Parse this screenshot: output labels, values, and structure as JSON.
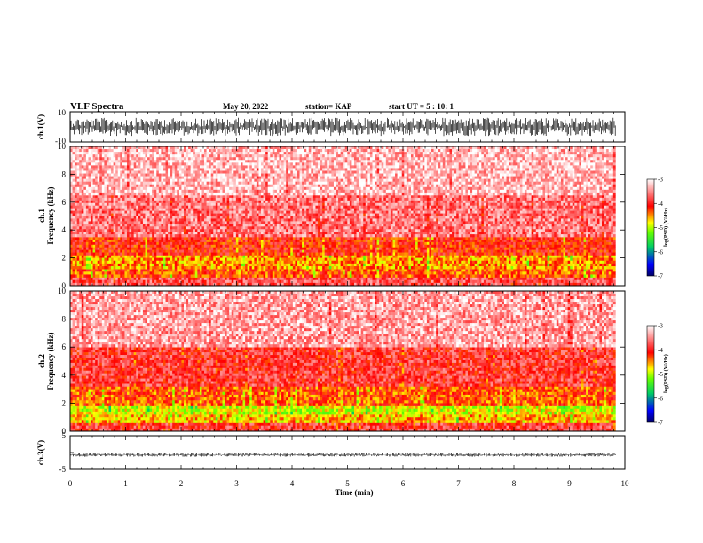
{
  "header": {
    "title": "VLF Spectra",
    "date": "May 20, 2022",
    "station": "station= KAP",
    "start": "start  UT =   5 : 10: 1"
  },
  "chart_data": [
    {
      "type": "line",
      "panel": "waveform-ch1",
      "ylabel": "ch.1(V)",
      "ylim": [
        -10,
        10
      ],
      "yticks": [
        "10",
        "-10"
      ],
      "xlim": [
        0,
        10
      ],
      "data_extent_min": 9.83,
      "amplitude_range": [
        -6,
        6
      ],
      "color": "#000000"
    },
    {
      "type": "heatmap",
      "panel": "spectrogram-ch1",
      "ylabel": "ch.1\nFrequency (kHz)",
      "ylim": [
        0,
        10
      ],
      "yticks": [
        "0",
        "2",
        "4",
        "6",
        "8",
        "10"
      ],
      "xlim": [
        0,
        10
      ],
      "data_extent_min": 9.83,
      "bands": [
        {
          "f": [
            0,
            0.6
          ],
          "level": -3.8
        },
        {
          "f": [
            0.6,
            1.2
          ],
          "level": -4.3
        },
        {
          "f": [
            1.2,
            2.2
          ],
          "level": -4.5
        },
        {
          "f": [
            2.2,
            3.5
          ],
          "level": -4.1
        },
        {
          "f": [
            3.5,
            6.5
          ],
          "level": -3.6
        },
        {
          "f": [
            6.5,
            10
          ],
          "level": -3.3
        }
      ],
      "colorbar": {
        "label": "log(PSD) (V²/Hz)",
        "range": [
          -7,
          -3
        ],
        "ticks": [
          "-3",
          "-4",
          "-5",
          "-6",
          "-7"
        ]
      }
    },
    {
      "type": "heatmap",
      "panel": "spectrogram-ch2",
      "ylabel": "ch.2\nFrequency (kHz)",
      "ylim": [
        0,
        10
      ],
      "yticks": [
        "0",
        "2",
        "4",
        "6",
        "8",
        "10"
      ],
      "xlim": [
        0,
        10
      ],
      "data_extent_min": 9.83,
      "bands": [
        {
          "f": [
            0,
            0.6
          ],
          "level": -3.9
        },
        {
          "f": [
            0.6,
            1.2
          ],
          "level": -4.6
        },
        {
          "f": [
            1.2,
            1.8
          ],
          "level": -4.9
        },
        {
          "f": [
            1.8,
            3.2
          ],
          "level": -4.3
        },
        {
          "f": [
            3.2,
            6.0
          ],
          "level": -3.9
        },
        {
          "f": [
            6.0,
            10
          ],
          "level": -3.4
        }
      ],
      "colorbar": {
        "label": "log(PSD) (V²/Hz)",
        "range": [
          -7,
          -3
        ],
        "ticks": [
          "-3",
          "-4",
          "-5",
          "-6",
          "-7"
        ]
      }
    },
    {
      "type": "line",
      "panel": "waveform-ch3",
      "ylabel": "ch.3(V)",
      "ylim": [
        -5,
        5
      ],
      "yticks": [
        "5",
        "0",
        "-5"
      ],
      "xlim": [
        0,
        10
      ],
      "data_extent_min": 9.83,
      "amplitude_range": [
        -1.2,
        -0.2
      ],
      "color": "#000000"
    }
  ],
  "xaxis": {
    "label": "Time  (min)",
    "ticks": [
      "0",
      "1",
      "2",
      "3",
      "4",
      "5",
      "6",
      "7",
      "8",
      "9",
      "10"
    ]
  }
}
